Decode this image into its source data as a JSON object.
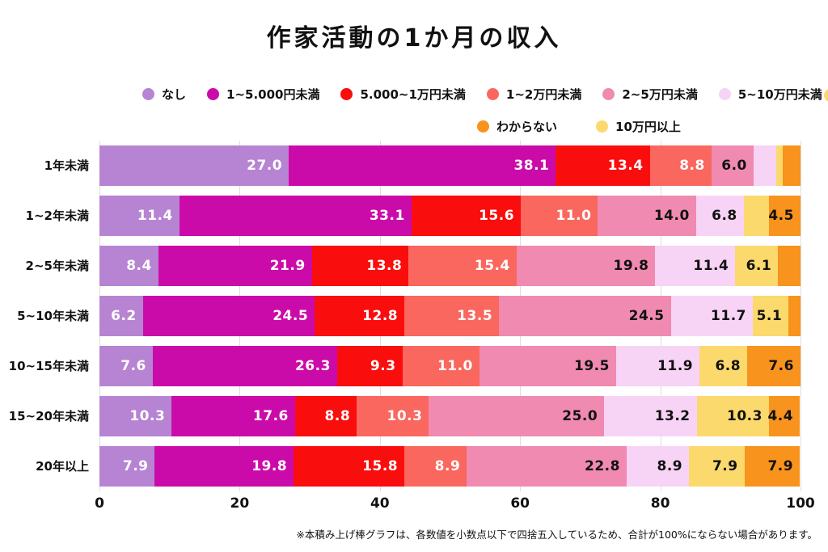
{
  "title": "作家活動の1か月の収入",
  "footnote": "※本積み上げ棒グラフは、各数値を小数点以下で四捨五入しているため、合計が100%にならない場合があります。",
  "legend": {
    "rows": [
      [
        {
          "label": "なし",
          "color": "#b684d2"
        },
        {
          "label": "1~5.000円未満",
          "color": "#cb0ba9"
        },
        {
          "label": "5.000~1万円未満",
          "color": "#fa0d0d"
        },
        {
          "label": "1~2万円未満",
          "color": "#f9675e"
        },
        {
          "label": "2~5万円未満",
          "color": "#f08ab0"
        },
        {
          "label": "5~10万円未満",
          "color": "#f7d3f6"
        }
      ],
      [
        {
          "label": "わからない",
          "color": "#f8931d"
        },
        {
          "label": "10万円以上",
          "color": "#fbd96d"
        }
      ]
    ],
    "clipped_marker_color": "#fbd96d"
  },
  "chart_data": {
    "type": "bar",
    "stacked": true,
    "orientation": "horizontal",
    "title": "作家活動の1か月の収入",
    "categories": [
      "1年未満",
      "1~2年未満",
      "2~5年未満",
      "5~10年未満",
      "10~15年未満",
      "15~20年未満",
      "20年以上"
    ],
    "series": [
      {
        "name": "なし",
        "color": "#b684d2",
        "label_color": "#ffffff",
        "values": [
          27.0,
          11.4,
          8.4,
          6.2,
          7.6,
          10.3,
          7.9
        ]
      },
      {
        "name": "1~5.000円未満",
        "color": "#cb0ba9",
        "label_color": "#ffffff",
        "values": [
          38.1,
          33.1,
          21.9,
          24.5,
          26.3,
          17.6,
          19.8
        ]
      },
      {
        "name": "5.000~1万円未満",
        "color": "#fa0d0d",
        "label_color": "#ffffff",
        "values": [
          13.4,
          15.6,
          13.8,
          12.8,
          9.3,
          8.8,
          15.8
        ]
      },
      {
        "name": "1~2万円未満",
        "color": "#f9675e",
        "label_color": "#ffffff",
        "values": [
          8.8,
          11.0,
          15.4,
          13.5,
          11.0,
          10.3,
          8.9
        ]
      },
      {
        "name": "2~5万円未満",
        "color": "#f08ab0",
        "label_color": "#111111",
        "values": [
          6.0,
          14.0,
          19.8,
          24.5,
          19.5,
          25.0,
          22.8
        ]
      },
      {
        "name": "5~10万円未満",
        "color": "#f7d3f6",
        "label_color": "#111111",
        "values": [
          3.3,
          6.8,
          11.4,
          11.7,
          11.9,
          13.2,
          8.9
        ]
      },
      {
        "name": "10万円以上",
        "color": "#fbd96d",
        "label_color": "#111111",
        "values": [
          0.9,
          3.6,
          6.1,
          5.1,
          6.8,
          10.3,
          7.9
        ]
      },
      {
        "name": "わからない",
        "color": "#f8931d",
        "label_color": "#111111",
        "values": [
          2.5,
          4.5,
          3.2,
          1.7,
          7.6,
          4.4,
          7.9
        ]
      }
    ],
    "xlabel": "",
    "ylabel": "",
    "xlim": [
      0,
      100
    ],
    "xticks": [
      0,
      20,
      40,
      60,
      80,
      100
    ],
    "grid": "vertical",
    "legend_position": "top",
    "value_label_decimals": 1,
    "hide_value_labels_below": 4.0
  }
}
